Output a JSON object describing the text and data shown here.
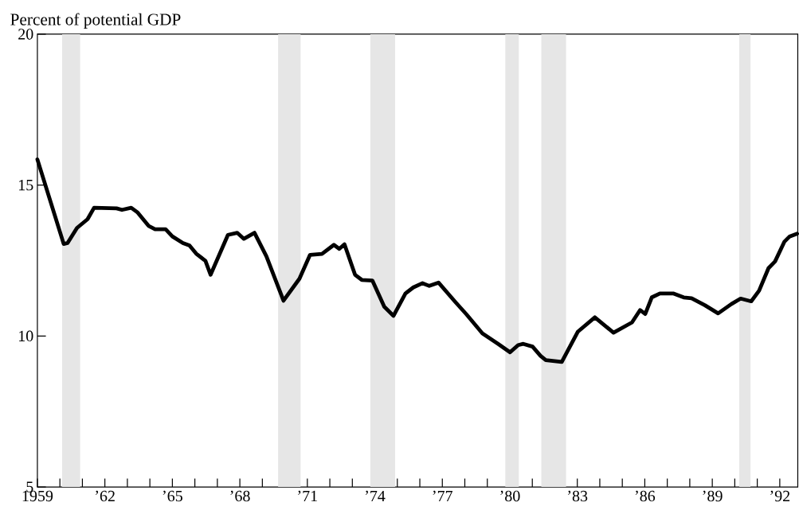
{
  "chart_data": {
    "type": "line",
    "ylabel": "Percent of potential GDP",
    "xlim": [
      1959,
      1992.8
    ],
    "ylim": [
      5,
      20
    ],
    "yticks": [
      5,
      10,
      15,
      20
    ],
    "xticks": [
      1959,
      {
        "value": 1960,
        "label": null
      },
      {
        "value": 1961,
        "label": null
      },
      {
        "value": 1962,
        "label": "’62"
      },
      {
        "value": 1963,
        "label": null
      },
      {
        "value": 1964,
        "label": null
      },
      {
        "value": 1965,
        "label": "’65"
      },
      {
        "value": 1966,
        "label": null
      },
      {
        "value": 1967,
        "label": null
      },
      {
        "value": 1968,
        "label": "’68"
      },
      {
        "value": 1969,
        "label": null
      },
      {
        "value": 1970,
        "label": null
      },
      {
        "value": 1971,
        "label": "’71"
      },
      {
        "value": 1972,
        "label": null
      },
      {
        "value": 1973,
        "label": null
      },
      {
        "value": 1974,
        "label": "’74"
      },
      {
        "value": 1975,
        "label": null
      },
      {
        "value": 1976,
        "label": null
      },
      {
        "value": 1977,
        "label": "’77"
      },
      {
        "value": 1978,
        "label": null
      },
      {
        "value": 1979,
        "label": null
      },
      {
        "value": 1980,
        "label": "’80"
      },
      {
        "value": 1981,
        "label": null
      },
      {
        "value": 1982,
        "label": null
      },
      {
        "value": 1983,
        "label": "’83"
      },
      {
        "value": 1984,
        "label": null
      },
      {
        "value": 1985,
        "label": null
      },
      {
        "value": 1986,
        "label": "’86"
      },
      {
        "value": 1987,
        "label": null
      },
      {
        "value": 1988,
        "label": null
      },
      {
        "value": 1989,
        "label": "’89"
      },
      {
        "value": 1990,
        "label": null
      },
      {
        "value": 1991,
        "label": null
      },
      {
        "value": 1992,
        "label": "’92"
      }
    ],
    "bands": [
      {
        "axis": "x",
        "from": 1960.1,
        "to": 1960.9,
        "color": "#e6e6e6"
      },
      {
        "axis": "x",
        "from": 1969.7,
        "to": 1970.7,
        "color": "#e6e6e6"
      },
      {
        "axis": "x",
        "from": 1973.8,
        "to": 1974.9,
        "color": "#e6e6e6"
      },
      {
        "axis": "x",
        "from": 1979.8,
        "to": 1980.4,
        "color": "#e6e6e6"
      },
      {
        "axis": "x",
        "from": 1981.4,
        "to": 1982.5,
        "color": "#e6e6e6"
      },
      {
        "axis": "x",
        "from": 1990.2,
        "to": 1990.7,
        "color": "#e6e6e6"
      }
    ],
    "grid": false,
    "marker": "none",
    "line_style": "solid",
    "series": [
      {
        "color": "#000000",
        "x": [
          1959.0,
          1960.17,
          1960.34,
          1960.76,
          1961.23,
          1961.52,
          1962.52,
          1962.76,
          1963.17,
          1963.46,
          1963.94,
          1964.23,
          1964.7,
          1965.0,
          1965.47,
          1965.76,
          1966.06,
          1966.47,
          1966.7,
          1967.47,
          1967.88,
          1968.18,
          1968.65,
          1969.18,
          1969.77,
          1969.94,
          1970.65,
          1971.12,
          1971.65,
          1972.18,
          1972.42,
          1972.65,
          1973.12,
          1973.42,
          1973.89,
          1974.42,
          1974.83,
          1975.36,
          1975.71,
          1976.12,
          1976.42,
          1976.83,
          1977.6,
          1978.07,
          1978.78,
          1979.48,
          1980.01,
          1980.37,
          1980.6,
          1981.01,
          1981.37,
          1981.6,
          1982.31,
          1983.02,
          1983.78,
          1984.61,
          1985.43,
          1985.79,
          1986.02,
          1986.31,
          1986.67,
          1987.26,
          1987.73,
          1988.08,
          1988.67,
          1989.26,
          1989.85,
          1990.26,
          1990.73,
          1991.08,
          1991.5,
          1991.79,
          1992.21,
          1992.44,
          1992.77
        ],
        "values": [
          15.85,
          13.05,
          13.08,
          13.58,
          13.87,
          14.25,
          14.23,
          14.18,
          14.25,
          14.09,
          13.65,
          13.54,
          13.54,
          13.3,
          13.08,
          13.0,
          12.73,
          12.49,
          12.03,
          13.35,
          13.42,
          13.22,
          13.42,
          12.64,
          11.5,
          11.17,
          11.9,
          12.69,
          12.72,
          13.02,
          12.89,
          13.04,
          12.03,
          11.86,
          11.84,
          10.97,
          10.67,
          11.41,
          11.61,
          11.75,
          11.66,
          11.77,
          11.11,
          10.72,
          10.09,
          9.74,
          9.46,
          9.7,
          9.74,
          9.65,
          9.34,
          9.2,
          9.14,
          10.14,
          10.62,
          10.11,
          10.45,
          10.86,
          10.73,
          11.28,
          11.41,
          11.41,
          11.28,
          11.25,
          11.02,
          10.75,
          11.06,
          11.24,
          11.15,
          11.5,
          12.25,
          12.47,
          13.13,
          13.3,
          13.39
        ]
      }
    ]
  }
}
